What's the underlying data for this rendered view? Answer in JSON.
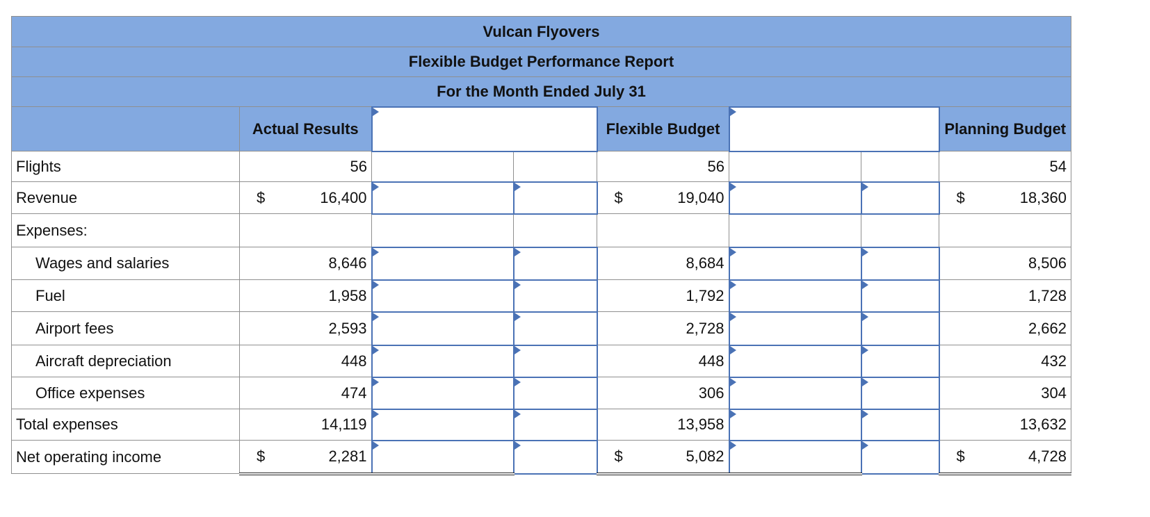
{
  "header": {
    "company": "Vulcan Flyovers",
    "report_title": "Flexible Budget Performance Report",
    "period": "For the Month Ended July 31"
  },
  "columns": {
    "actual": "Actual Results",
    "flexible": "Flexible Budget",
    "planning": "Planning Budget"
  },
  "currency_symbol": "$",
  "rows": [
    {
      "label": "Flights",
      "actual": "56",
      "flexible": "56",
      "planning": "54"
    },
    {
      "label": "Revenue",
      "actual": "16,400",
      "flexible": "19,040",
      "planning": "18,360"
    },
    {
      "label": "Expenses:"
    },
    {
      "label": "Wages and salaries",
      "actual": "8,646",
      "flexible": "8,684",
      "planning": "8,506"
    },
    {
      "label": "Fuel",
      "actual": "1,958",
      "flexible": "1,792",
      "planning": "1,728"
    },
    {
      "label": "Airport fees",
      "actual": "2,593",
      "flexible": "2,728",
      "planning": "2,662"
    },
    {
      "label": "Aircraft depreciation",
      "actual": "448",
      "flexible": "448",
      "planning": "432"
    },
    {
      "label": "Office expenses",
      "actual": "474",
      "flexible": "306",
      "planning": "304"
    },
    {
      "label": "Total expenses",
      "actual": "14,119",
      "flexible": "13,958",
      "planning": "13,632"
    },
    {
      "label": "Net operating income",
      "actual": "2,281",
      "flexible": "5,082",
      "planning": "4,728"
    }
  ]
}
